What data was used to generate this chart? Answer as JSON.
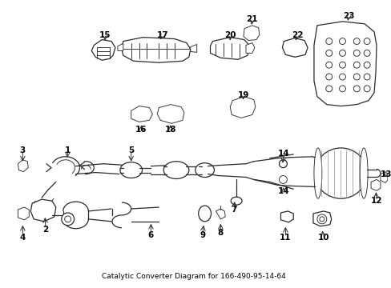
{
  "title": "Catalytic Converter Diagram for 166-490-95-14-64",
  "bg": "#ffffff",
  "lc": "#2a2a2a",
  "tc": "#000000",
  "fig_w": 4.89,
  "fig_h": 3.6,
  "dpi": 100
}
